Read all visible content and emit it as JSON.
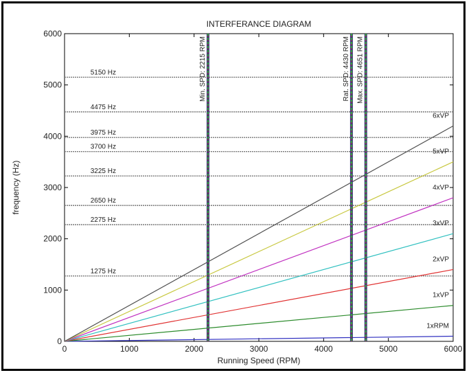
{
  "chart_data": {
    "type": "line",
    "title": "INTERFERANCE DIAGRAM",
    "xlabel": "Running Speed (RPM)",
    "ylabel": "frequency (Hz)",
    "xlim": [
      0,
      6000
    ],
    "ylim": [
      0,
      6000
    ],
    "xticks": [
      0,
      1000,
      2000,
      3000,
      4000,
      5000,
      6000
    ],
    "yticks": [
      0,
      1000,
      2000,
      3000,
      4000,
      5000,
      6000
    ],
    "grid": false,
    "series": [
      {
        "name": "1xRPM",
        "x": [
          0,
          6000
        ],
        "y": [
          0,
          100
        ],
        "color": "#3030c0"
      },
      {
        "name": "1xVP",
        "x": [
          0,
          6000
        ],
        "y": [
          0,
          700
        ],
        "color": "#2a8a2a"
      },
      {
        "name": "2xVP",
        "x": [
          0,
          6000
        ],
        "y": [
          0,
          1400
        ],
        "color": "#e03030"
      },
      {
        "name": "3xVP",
        "x": [
          0,
          6000
        ],
        "y": [
          0,
          2100
        ],
        "color": "#30c0c0"
      },
      {
        "name": "4xVP",
        "x": [
          0,
          6000
        ],
        "y": [
          0,
          2800
        ],
        "color": "#c030c0"
      },
      {
        "name": "5xVP",
        "x": [
          0,
          6000
        ],
        "y": [
          0,
          3500
        ],
        "color": "#c8c840"
      },
      {
        "name": "6xVP",
        "x": [
          0,
          6000
        ],
        "y": [
          0,
          4200
        ],
        "color": "#505050"
      }
    ],
    "horizontal_lines": [
      {
        "label": "5150 Hz",
        "y": 5150
      },
      {
        "label": "4475 Hz",
        "y": 4475
      },
      {
        "label": "3975 Hz",
        "y": 3975
      },
      {
        "label": "3700 Hz",
        "y": 3700
      },
      {
        "label": "3225 Hz",
        "y": 3225
      },
      {
        "label": "2650 Hz",
        "y": 2650
      },
      {
        "label": "2275 Hz",
        "y": 2275
      },
      {
        "label": "1275 Hz",
        "y": 1275
      }
    ],
    "vertical_lines": [
      {
        "label": "Min. SPD: 2215 RPM",
        "x": 2215
      },
      {
        "label": "Rat. SPD: 4430 RPM",
        "x": 4430
      },
      {
        "label": "Max. SPD: 4651 RPM",
        "x": 4651
      }
    ]
  }
}
